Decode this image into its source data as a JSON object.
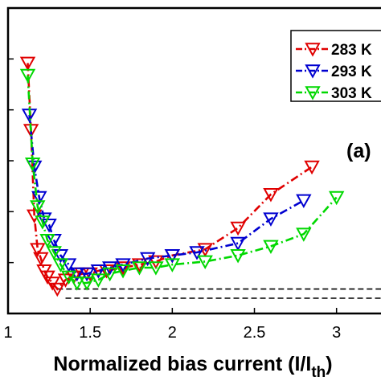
{
  "chart_data": {
    "type": "line",
    "xlabel": "Normalized bias current (I/I",
    "xlabel_sub": "th",
    "xlabel_close": ")",
    "xlim": [
      1,
      3.3
    ],
    "ylim": [
      0,
      1
    ],
    "x_ticks": [
      1,
      1.5,
      2,
      2.5,
      3
    ],
    "x_tick_labels": [
      "1",
      "1.5",
      "2",
      "2.5",
      "3"
    ],
    "y_tick_count": 5,
    "panel_label": "(a)",
    "legend_position": "top-right",
    "marker": "down-triangle",
    "line_style": "dash-dot",
    "series": [
      {
        "name": "283 K",
        "color": "#e00000",
        "x": [
          1.12,
          1.14,
          1.16,
          1.18,
          1.2,
          1.22,
          1.24,
          1.27,
          1.3,
          1.35,
          1.4,
          1.45,
          1.5,
          1.55,
          1.6,
          1.7,
          1.8,
          1.9,
          2.0,
          2.2,
          2.4,
          2.6,
          2.85
        ],
        "y": [
          0.82,
          0.6,
          0.32,
          0.21,
          0.18,
          0.14,
          0.12,
          0.1,
          0.08,
          0.11,
          0.12,
          0.13,
          0.13,
          0.14,
          0.14,
          0.15,
          0.16,
          0.17,
          0.19,
          0.21,
          0.28,
          0.39,
          0.48
        ]
      },
      {
        "name": "293 K",
        "color": "#0000d0",
        "x": [
          1.13,
          1.16,
          1.19,
          1.22,
          1.25,
          1.28,
          1.32,
          1.37,
          1.42,
          1.48,
          1.55,
          1.62,
          1.7,
          1.85,
          2.0,
          2.15,
          2.4,
          2.6,
          2.8
        ],
        "y": [
          0.65,
          0.48,
          0.38,
          0.31,
          0.29,
          0.24,
          0.19,
          0.16,
          0.13,
          0.13,
          0.14,
          0.15,
          0.16,
          0.18,
          0.19,
          0.2,
          0.23,
          0.31,
          0.37
        ]
      },
      {
        "name": "303 K",
        "color": "#00d800",
        "x": [
          1.12,
          1.15,
          1.18,
          1.21,
          1.24,
          1.28,
          1.32,
          1.37,
          1.42,
          1.48,
          1.55,
          1.62,
          1.7,
          1.8,
          1.9,
          2.0,
          2.2,
          2.4,
          2.6,
          2.8,
          3.0
        ],
        "y": [
          0.78,
          0.49,
          0.35,
          0.3,
          0.24,
          0.2,
          0.16,
          0.12,
          0.1,
          0.1,
          0.11,
          0.13,
          0.14,
          0.15,
          0.15,
          0.16,
          0.17,
          0.19,
          0.22,
          0.26,
          0.38
        ]
      }
    ],
    "reference_lines": [
      {
        "style": "dashed",
        "x_start": 1.3,
        "y": 0.08
      },
      {
        "style": "dashed",
        "x_start": 1.35,
        "y": 0.05
      }
    ]
  }
}
